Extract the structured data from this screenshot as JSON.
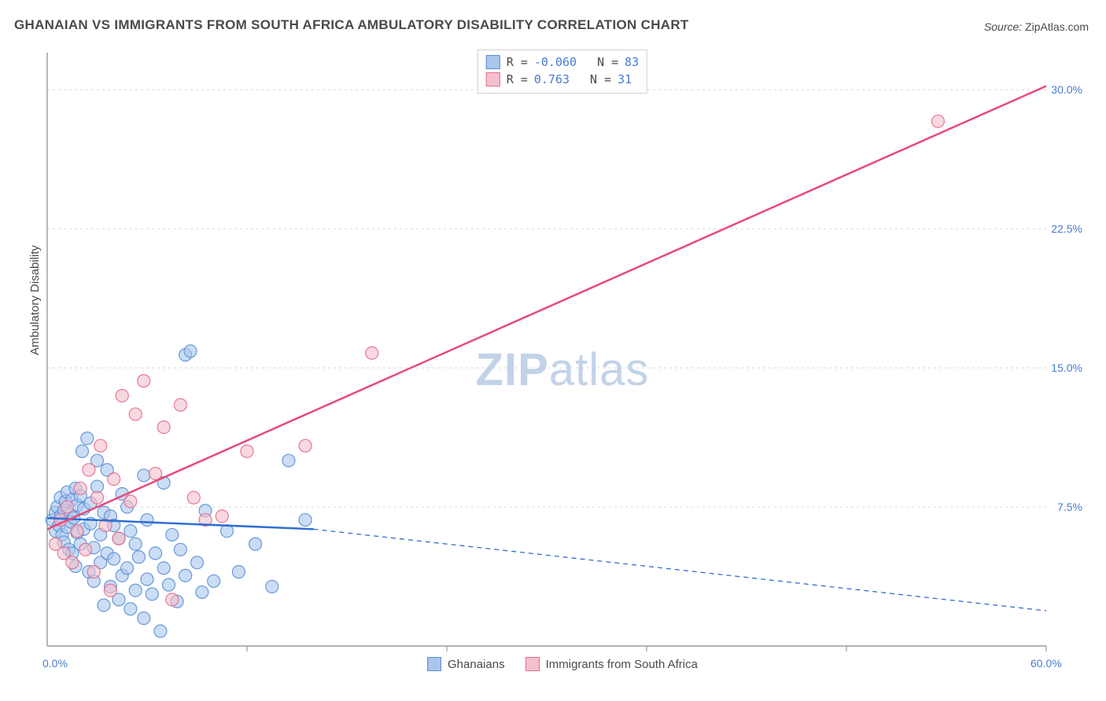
{
  "title": "GHANAIAN VS IMMIGRANTS FROM SOUTH AFRICA AMBULATORY DISABILITY CORRELATION CHART",
  "source_label": "Source:",
  "source_value": "ZipAtlas.com",
  "ylabel": "Ambulatory Disability",
  "watermark_a": "ZIP",
  "watermark_b": "atlas",
  "chart": {
    "type": "scatter",
    "xlim": [
      0,
      60
    ],
    "ylim": [
      0,
      32
    ],
    "x_ticks": [
      0,
      60
    ],
    "x_tick_labels": [
      "0.0%",
      "60.0%"
    ],
    "y_ticks": [
      7.5,
      15.0,
      22.5,
      30.0
    ],
    "y_tick_labels": [
      "7.5%",
      "15.0%",
      "22.5%",
      "30.0%"
    ],
    "grid_color": "#d8d8d8",
    "axis_color": "#888888",
    "background_color": "#ffffff",
    "x_tick_minor_positions": [
      12,
      24,
      36,
      48
    ],
    "series": [
      {
        "name": "Ghanaians",
        "marker_color_fill": "#a9c6ec",
        "marker_color_stroke": "#5a8fd6",
        "marker_opacity": 0.6,
        "marker_radius": 8,
        "regression": {
          "R_label": "R =",
          "R": "-0.060",
          "N_label": "N =",
          "N": "83",
          "line_color": "#2f6fd0",
          "line_width": 2.5,
          "x_solid_end": 16,
          "y_start": 6.9,
          "y_end_solid": 6.3,
          "y_end_dash": 1.9
        },
        "points": [
          [
            0.3,
            6.8
          ],
          [
            0.5,
            7.2
          ],
          [
            0.5,
            6.2
          ],
          [
            0.6,
            7.5
          ],
          [
            0.7,
            6.5
          ],
          [
            0.8,
            7.0
          ],
          [
            0.8,
            8.0
          ],
          [
            0.9,
            6.0
          ],
          [
            1.0,
            7.3
          ],
          [
            1.0,
            5.6
          ],
          [
            1.1,
            7.8
          ],
          [
            1.2,
            6.4
          ],
          [
            1.2,
            8.3
          ],
          [
            1.3,
            5.2
          ],
          [
            1.4,
            7.1
          ],
          [
            1.4,
            6.7
          ],
          [
            1.5,
            7.9
          ],
          [
            1.5,
            5.0
          ],
          [
            1.6,
            6.9
          ],
          [
            1.7,
            8.5
          ],
          [
            1.7,
            4.3
          ],
          [
            1.8,
            6.1
          ],
          [
            1.8,
            7.6
          ],
          [
            2.0,
            8.1
          ],
          [
            2.0,
            5.5
          ],
          [
            2.1,
            10.5
          ],
          [
            2.2,
            6.3
          ],
          [
            2.2,
            7.4
          ],
          [
            2.4,
            11.2
          ],
          [
            2.5,
            4.0
          ],
          [
            2.6,
            6.6
          ],
          [
            2.6,
            7.7
          ],
          [
            2.8,
            3.5
          ],
          [
            2.8,
            5.3
          ],
          [
            3.0,
            8.6
          ],
          [
            3.0,
            10.0
          ],
          [
            3.2,
            4.5
          ],
          [
            3.2,
            6.0
          ],
          [
            3.4,
            7.2
          ],
          [
            3.4,
            2.2
          ],
          [
            3.6,
            5.0
          ],
          [
            3.6,
            9.5
          ],
          [
            3.8,
            3.2
          ],
          [
            3.8,
            7.0
          ],
          [
            4.0,
            4.7
          ],
          [
            4.0,
            6.5
          ],
          [
            4.3,
            2.5
          ],
          [
            4.3,
            5.8
          ],
          [
            4.5,
            8.2
          ],
          [
            4.5,
            3.8
          ],
          [
            4.8,
            4.2
          ],
          [
            4.8,
            7.5
          ],
          [
            5.0,
            2.0
          ],
          [
            5.0,
            6.2
          ],
          [
            5.3,
            3.0
          ],
          [
            5.3,
            5.5
          ],
          [
            5.5,
            4.8
          ],
          [
            5.8,
            1.5
          ],
          [
            5.8,
            9.2
          ],
          [
            6.0,
            3.6
          ],
          [
            6.0,
            6.8
          ],
          [
            6.3,
            2.8
          ],
          [
            6.5,
            5.0
          ],
          [
            6.8,
            0.8
          ],
          [
            7.0,
            4.2
          ],
          [
            7.0,
            8.8
          ],
          [
            7.3,
            3.3
          ],
          [
            7.5,
            6.0
          ],
          [
            7.8,
            2.4
          ],
          [
            8.0,
            5.2
          ],
          [
            8.3,
            15.7
          ],
          [
            8.3,
            3.8
          ],
          [
            8.6,
            15.9
          ],
          [
            9.0,
            4.5
          ],
          [
            9.3,
            2.9
          ],
          [
            9.5,
            7.3
          ],
          [
            10.0,
            3.5
          ],
          [
            10.8,
            6.2
          ],
          [
            11.5,
            4.0
          ],
          [
            12.5,
            5.5
          ],
          [
            13.5,
            3.2
          ],
          [
            14.5,
            10.0
          ],
          [
            15.5,
            6.8
          ]
        ]
      },
      {
        "name": "Immigrants from South Africa",
        "marker_color_fill": "#f4c0cd",
        "marker_color_stroke": "#e56b8b",
        "marker_opacity": 0.6,
        "marker_radius": 8,
        "regression": {
          "R_label": "R =",
          "R": " 0.763",
          "N_label": "N =",
          "N": "31",
          "line_color": "#e84a7a",
          "line_width": 2.5,
          "x_solid_end": 60,
          "y_start": 6.3,
          "y_end_solid": 30.2,
          "y_end_dash": 30.2
        },
        "points": [
          [
            0.5,
            5.5
          ],
          [
            0.8,
            6.8
          ],
          [
            1.0,
            5.0
          ],
          [
            1.2,
            7.5
          ],
          [
            1.5,
            4.5
          ],
          [
            1.8,
            6.2
          ],
          [
            2.0,
            8.5
          ],
          [
            2.3,
            5.2
          ],
          [
            2.5,
            9.5
          ],
          [
            2.8,
            4.0
          ],
          [
            3.0,
            8.0
          ],
          [
            3.2,
            10.8
          ],
          [
            3.5,
            6.5
          ],
          [
            3.8,
            3.0
          ],
          [
            4.0,
            9.0
          ],
          [
            4.3,
            5.8
          ],
          [
            4.5,
            13.5
          ],
          [
            5.0,
            7.8
          ],
          [
            5.3,
            12.5
          ],
          [
            5.8,
            14.3
          ],
          [
            6.5,
            9.3
          ],
          [
            7.0,
            11.8
          ],
          [
            7.5,
            2.5
          ],
          [
            8.0,
            13.0
          ],
          [
            8.8,
            8.0
          ],
          [
            9.5,
            6.8
          ],
          [
            10.5,
            7.0
          ],
          [
            12.0,
            10.5
          ],
          [
            15.5,
            10.8
          ],
          [
            19.5,
            15.8
          ],
          [
            53.5,
            28.3
          ]
        ]
      }
    ]
  },
  "legend": {
    "series1_label": "Ghanaians",
    "series2_label": "Immigrants from South Africa"
  }
}
